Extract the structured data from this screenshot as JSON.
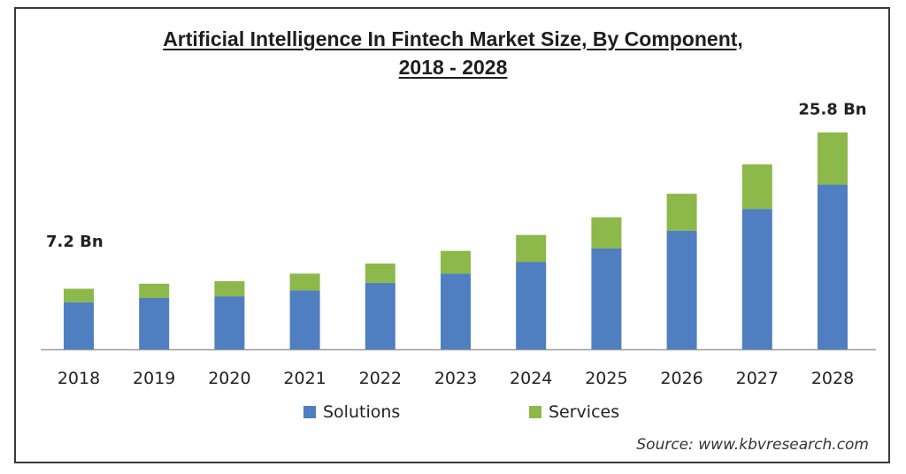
{
  "title_line1": "Artificial Intelligence In Fintech Market Size, By Component,",
  "title_line2": "2018 - 2028",
  "source": "Source:  www.kbvresearch.com",
  "colors": {
    "solutions": "#4F7FC0",
    "services": "#8DB84A",
    "axis": "#9a9a9a"
  },
  "chart_data": {
    "type": "bar",
    "stacked": true,
    "title": "Artificial Intelligence In Fintech Market Size, By Component, 2018 - 2028",
    "categories": [
      "2018",
      "2019",
      "2020",
      "2021",
      "2022",
      "2023",
      "2024",
      "2025",
      "2026",
      "2027",
      "2028"
    ],
    "series": [
      {
        "name": "Solutions",
        "values": [
          5.6,
          6.1,
          6.3,
          7.0,
          7.9,
          9.0,
          10.4,
          12.0,
          14.1,
          16.7,
          19.6
        ]
      },
      {
        "name": "Services",
        "values": [
          1.6,
          1.7,
          1.8,
          2.0,
          2.3,
          2.7,
          3.2,
          3.7,
          4.4,
          5.3,
          6.2
        ]
      }
    ],
    "annotations": [
      {
        "category": "2018",
        "text": "7.2 Bn"
      },
      {
        "category": "2028",
        "text": "25.8 Bn"
      }
    ],
    "ylim": [
      0,
      26.5
    ],
    "grid": false,
    "legend": "bottom"
  }
}
